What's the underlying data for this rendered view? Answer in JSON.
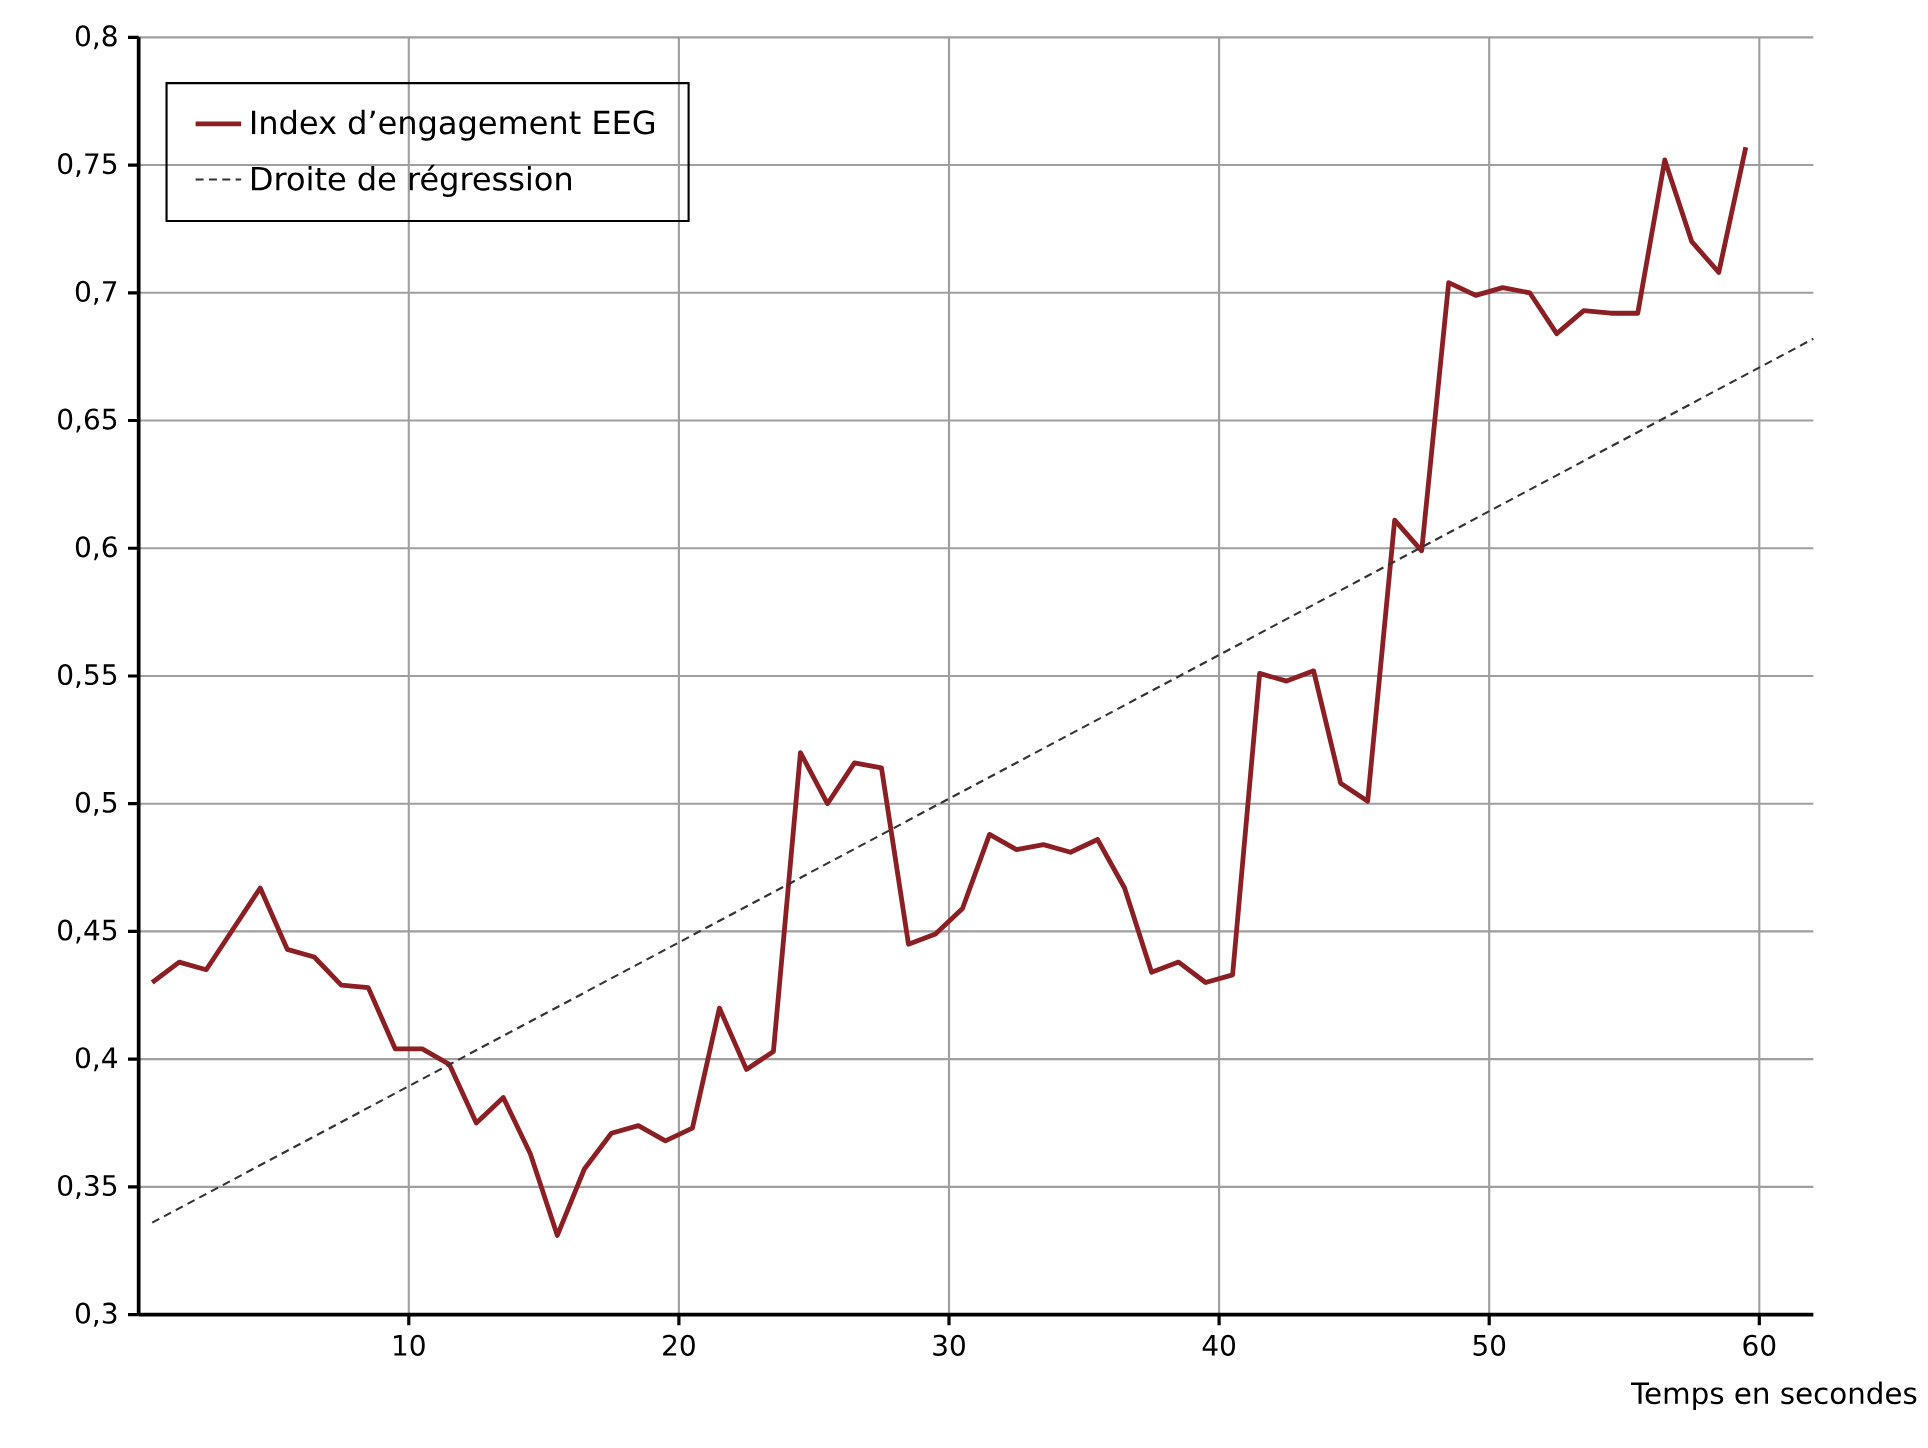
{
  "chart_data": {
    "type": "line",
    "xlabel": "Temps en secondes",
    "grid": true,
    "legend": "top left",
    "xlim": [
      0,
      62
    ],
    "ylim": [
      0.3,
      0.8
    ],
    "xticks": [
      10,
      20,
      30,
      40,
      50,
      60
    ],
    "yticks": [
      {
        "value": 0.3,
        "label": "0,3"
      },
      {
        "value": 0.35,
        "label": "0,35"
      },
      {
        "value": 0.4,
        "label": "0,4"
      },
      {
        "value": 0.45,
        "label": "0,45"
      },
      {
        "value": 0.5,
        "label": "0,5"
      },
      {
        "value": 0.55,
        "label": "0,55"
      },
      {
        "value": 0.6,
        "label": "0,6"
      },
      {
        "value": 0.65,
        "label": "0,65"
      },
      {
        "value": 0.7,
        "label": "0,7"
      },
      {
        "value": 0.75,
        "label": "0,75"
      },
      {
        "value": 0.8,
        "label": "0,8"
      }
    ],
    "series": [
      {
        "name": "Index d’engagement EEG",
        "color": "#8b1f24",
        "line_style": "solid",
        "x": [
          0.5,
          1.5,
          2.5,
          3.5,
          4.5,
          5.5,
          6.5,
          7.5,
          8.5,
          9.5,
          10.5,
          11.5,
          12.5,
          13.5,
          14.5,
          15.5,
          16.5,
          17.5,
          18.5,
          19.5,
          20.5,
          21.5,
          22.5,
          23.5,
          24.5,
          25.5,
          26.5,
          27.5,
          28.5,
          29.5,
          30.5,
          31.5,
          32.5,
          33.5,
          34.5,
          35.5,
          36.5,
          37.5,
          38.5,
          39.5,
          40.5,
          41.5,
          42.5,
          43.5,
          44.5,
          45.5,
          46.5,
          47.5,
          48.5,
          49.5,
          50.5,
          51.5,
          52.5,
          53.5,
          54.5,
          55.5,
          56.5,
          57.5,
          58.5,
          59.5
        ],
        "values": [
          0.43,
          0.438,
          0.435,
          0.451,
          0.467,
          0.443,
          0.44,
          0.429,
          0.428,
          0.404,
          0.404,
          0.398,
          0.375,
          0.385,
          0.363,
          0.331,
          0.357,
          0.371,
          0.374,
          0.368,
          0.373,
          0.42,
          0.396,
          0.403,
          0.52,
          0.5,
          0.516,
          0.514,
          0.445,
          0.449,
          0.459,
          0.488,
          0.482,
          0.484,
          0.481,
          0.486,
          0.467,
          0.434,
          0.438,
          0.43,
          0.433,
          0.551,
          0.548,
          0.552,
          0.508,
          0.501,
          0.611,
          0.599,
          0.704,
          0.699,
          0.702,
          0.7,
          0.684,
          0.693,
          0.692,
          0.692,
          0.752,
          0.72,
          0.708,
          0.757
        ]
      },
      {
        "name": "Droite de régression",
        "color": "#333333",
        "line_style": "dashed",
        "x": [
          0.5,
          62
        ],
        "values": [
          0.336,
          0.682
        ]
      }
    ]
  }
}
